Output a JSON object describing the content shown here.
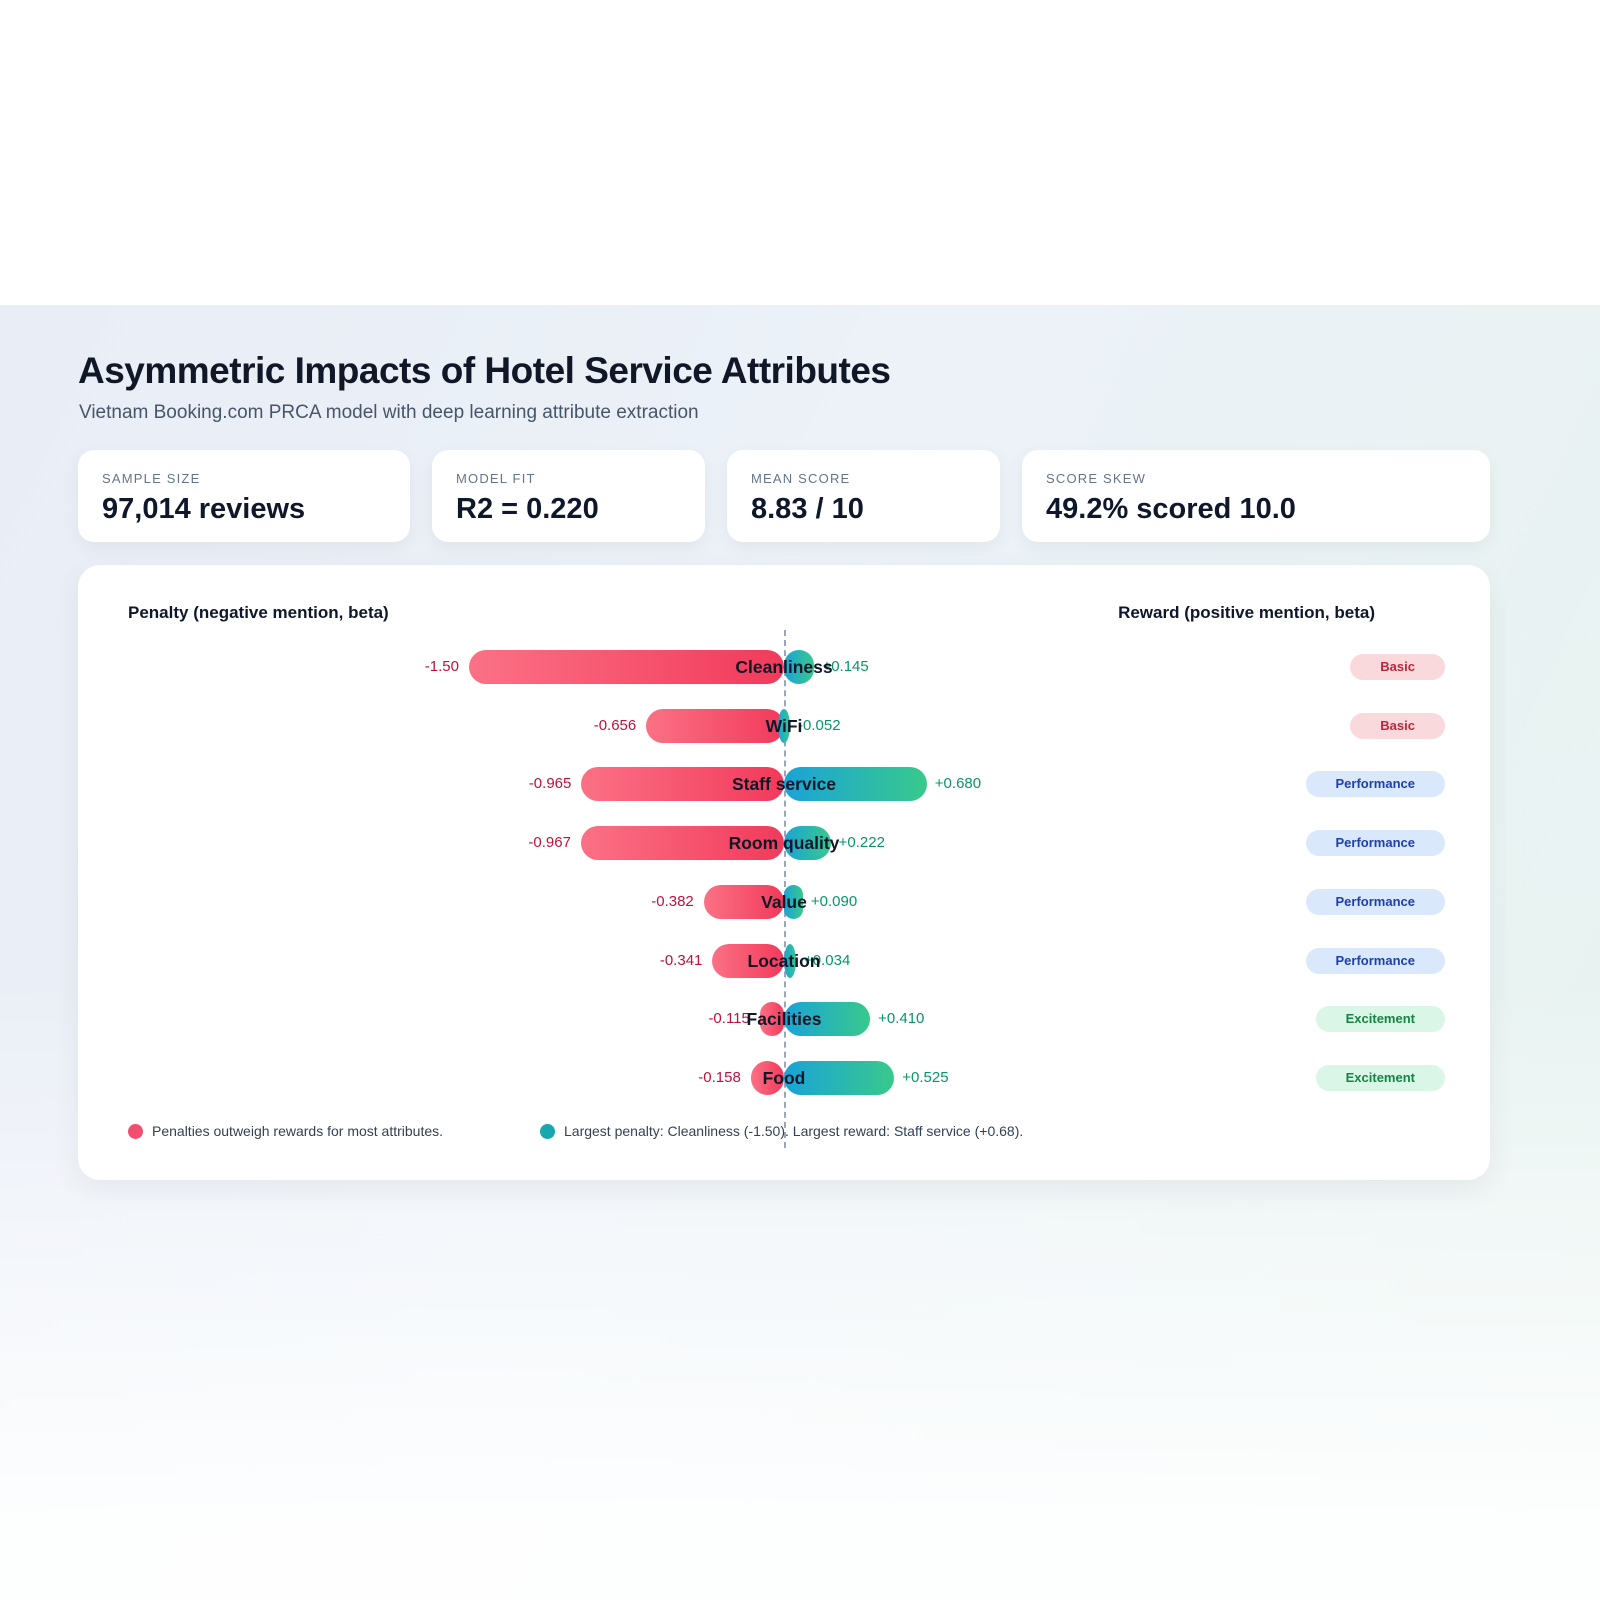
{
  "header": {
    "title": "Asymmetric Impacts of Hotel Service Attributes",
    "subtitle": "Vietnam Booking.com PRCA model with deep learning attribute extraction"
  },
  "stats": [
    {
      "label": "SAMPLE SIZE",
      "value": "97,014 reviews"
    },
    {
      "label": "MODEL FIT",
      "value": "R2 = 0.220"
    },
    {
      "label": "MEAN SCORE",
      "value": "8.83 / 10"
    },
    {
      "label": "SCORE SKEW",
      "value": "49.2% scored 10.0"
    }
  ],
  "chart_data": {
    "type": "bar",
    "orientation": "diverging-horizontal",
    "penalty_header": "Penalty (negative mention, beta)",
    "reward_header": "Reward (positive mention, beta)",
    "categories": [
      "Cleanliness",
      "WiFi",
      "Staff service",
      "Room quality",
      "Value",
      "Location",
      "Facilities",
      "Food"
    ],
    "series": [
      {
        "name": "Penalty (negative mention, beta)",
        "values": [
          -1.5,
          -0.656,
          -0.965,
          -0.967,
          -0.382,
          -0.341,
          -0.115,
          -0.158
        ]
      },
      {
        "name": "Reward (positive mention, beta)",
        "values": [
          0.145,
          -0.052,
          0.68,
          0.222,
          0.09,
          0.034,
          0.41,
          0.525
        ]
      }
    ],
    "penalty_labels": [
      "-1.50",
      "-0.656",
      "-0.965",
      "-0.967",
      "-0.382",
      "-0.341",
      "-0.115",
      "-0.158"
    ],
    "reward_labels": [
      "+0.145",
      "-0.052",
      "+0.680",
      "+0.222",
      "+0.090",
      "+0.034",
      "+0.410",
      "+0.525"
    ],
    "badges": [
      "Basic",
      "Basic",
      "Performance",
      "Performance",
      "Performance",
      "Performance",
      "Excitement",
      "Excitement"
    ],
    "xlim": [
      -1.6,
      0.8
    ],
    "colors": {
      "penalty_gradient": [
        "#fb7185",
        "#f23a5b"
      ],
      "reward_gradient": [
        "#1aa3d8",
        "#38c98b"
      ],
      "penalty_text": "#be123c",
      "reward_text": "#059669"
    },
    "badge_styles": {
      "Basic": {
        "bg": "#f9d9dc",
        "text": "#c0263a"
      },
      "Performance": {
        "bg": "#d9e9fb",
        "text": "#1e40af"
      },
      "Excitement": {
        "bg": "#daf6e6",
        "text": "#158445"
      }
    }
  },
  "legend": [
    {
      "text": "Penalties outweigh rewards for most attributes.",
      "color": "#f0506e"
    },
    {
      "text": "Largest penalty: Cleanliness (-1.50). Largest reward: Staff service (+0.68).",
      "color": "#17a7ad"
    }
  ]
}
